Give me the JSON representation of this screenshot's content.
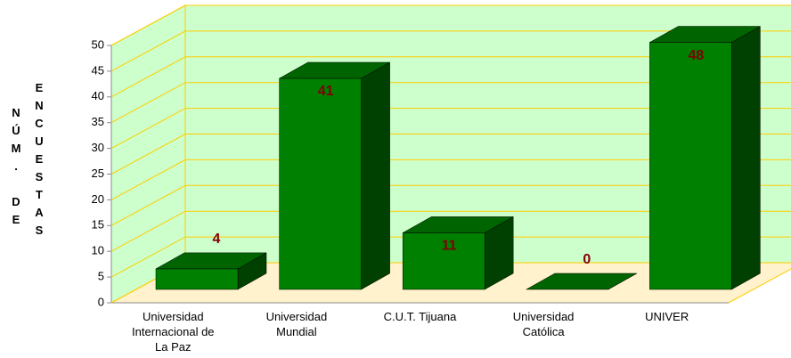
{
  "chart_data": {
    "type": "bar3d",
    "y_label": "NÚM. DE ENCUESTAS",
    "categories": [
      "Universidad Internacional de La Paz",
      "Universidad Mundial",
      "C.U.T. Tijuana",
      "Universidad Católica",
      "UNIVER"
    ],
    "values": [
      4,
      41,
      11,
      0,
      48
    ],
    "color": "#008000",
    "label_color": "#800000",
    "ylim": [
      0,
      50
    ],
    "yticks": [
      0,
      5,
      10,
      15,
      20,
      25,
      30,
      35,
      40,
      45,
      50
    ],
    "grid": true
  }
}
